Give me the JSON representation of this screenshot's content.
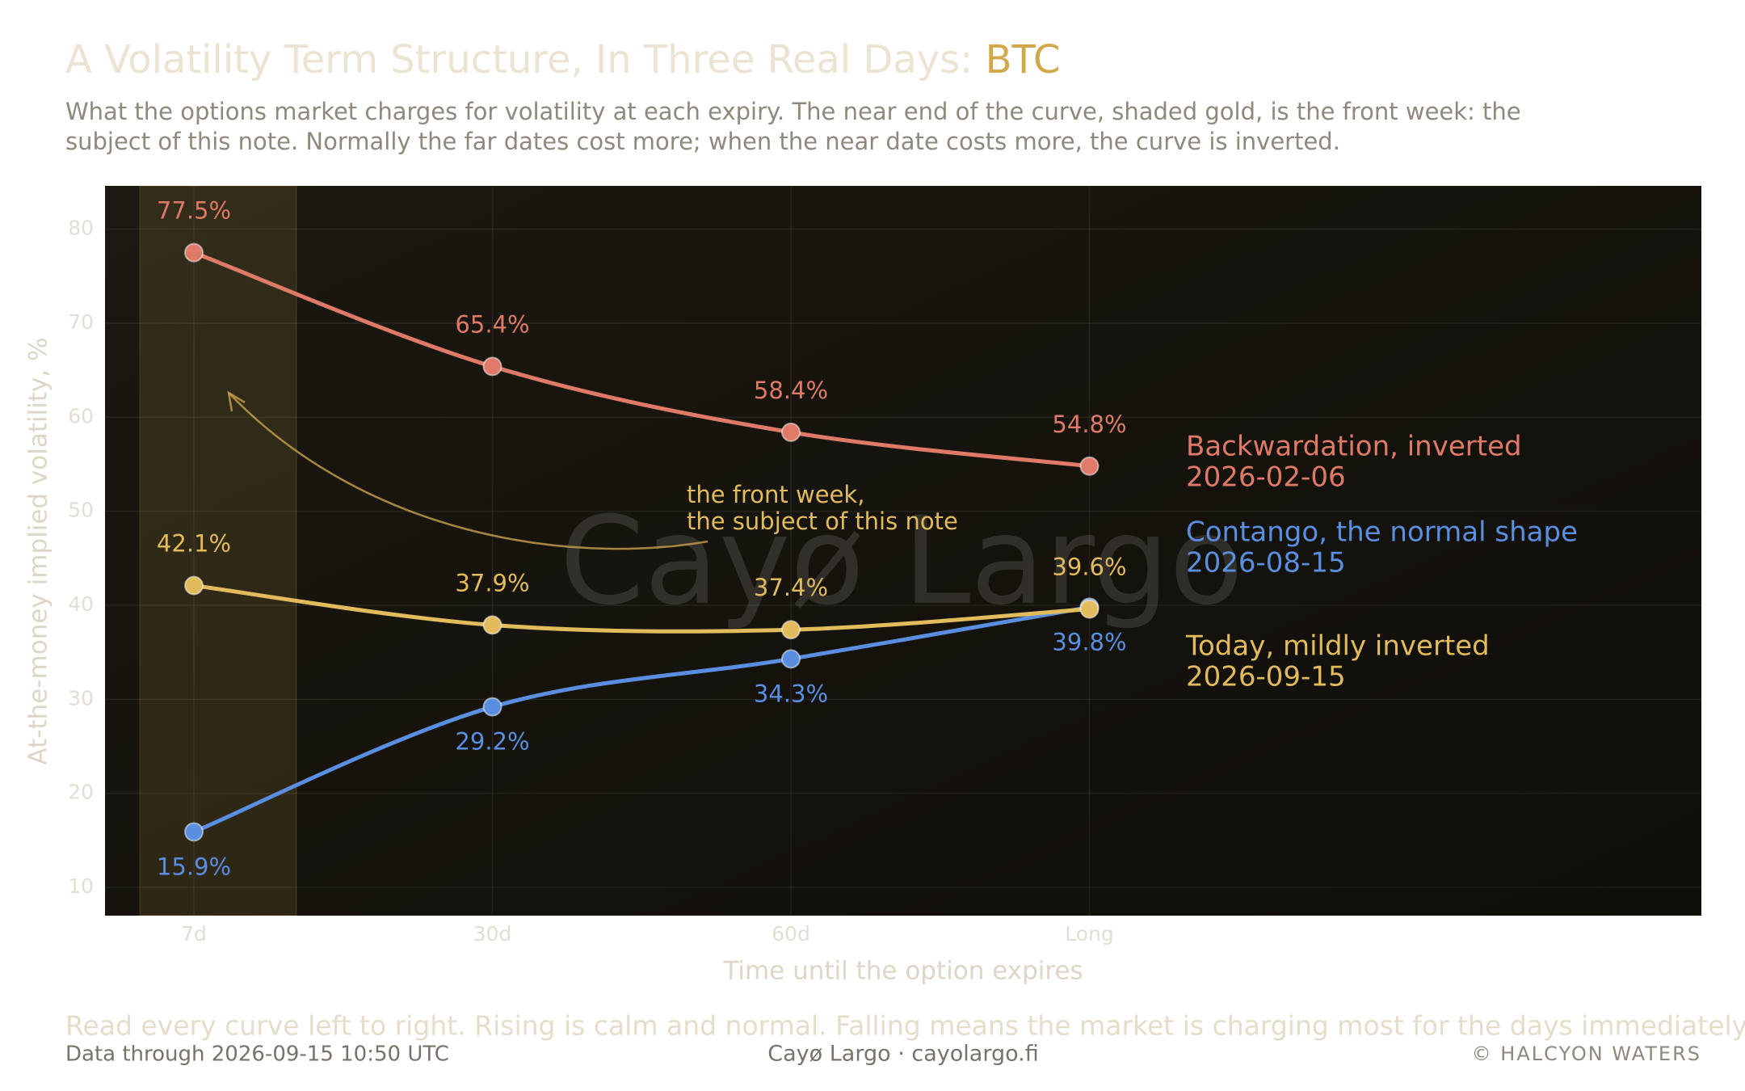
{
  "chart_data": {
    "type": "line",
    "title": "A Volatility Term Structure, In Three Real Days:",
    "title_highlight": "BTC",
    "subtitle": [
      "What the options market charges for volatility at each expiry. The near end of the curve, shaded gold, is the front week: the",
      "subject of this note. Normally the far dates cost more; when the near date costs more, the curve is inverted."
    ],
    "x_label": "Time until the option expires",
    "y_label": "At-the-money implied volatility, %",
    "categories": [
      "7d",
      "30d",
      "60d",
      "Long"
    ],
    "series": [
      {
        "name": "Backwardation, inverted",
        "date": "2026-02-06",
        "color": "#e07a68",
        "values": [
          77.5,
          65.4,
          58.4,
          54.8
        ],
        "value_labels": [
          "77.5%",
          "65.4%",
          "58.4%",
          "54.8%"
        ],
        "label_side": "above"
      },
      {
        "name": "Contango, the normal shape",
        "date": "2026-08-15",
        "color": "#5a8ee0",
        "values": [
          15.9,
          29.2,
          34.3,
          39.8
        ],
        "value_labels": [
          "15.9%",
          "29.2%",
          "34.3%",
          "39.8%"
        ],
        "label_side": "below"
      },
      {
        "name": "Today, mildly inverted",
        "date": "2026-09-15",
        "color": "#e2bb5c",
        "values": [
          42.1,
          37.9,
          37.4,
          39.6
        ],
        "value_labels": [
          "42.1%",
          "37.9%",
          "37.4%",
          "39.6%"
        ],
        "label_side": "above"
      }
    ],
    "ylim": [
      7,
      84.6
    ],
    "yticks": [
      10,
      20,
      30,
      40,
      50,
      60,
      70,
      80
    ],
    "grid": true,
    "annotation": [
      "the front week,",
      "the subject of this note"
    ],
    "watermark": "Cayø Largo",
    "footer_note": "Read every curve left to right. Rising is calm and normal. Falling means the market is charging most for the days immediately ahead.",
    "data_through": "Data through 2026-09-15 10:50 UTC",
    "brand": "Cayø Largo  ·  cayolargo.fi",
    "copyright": "© HALCYON WATERS"
  }
}
